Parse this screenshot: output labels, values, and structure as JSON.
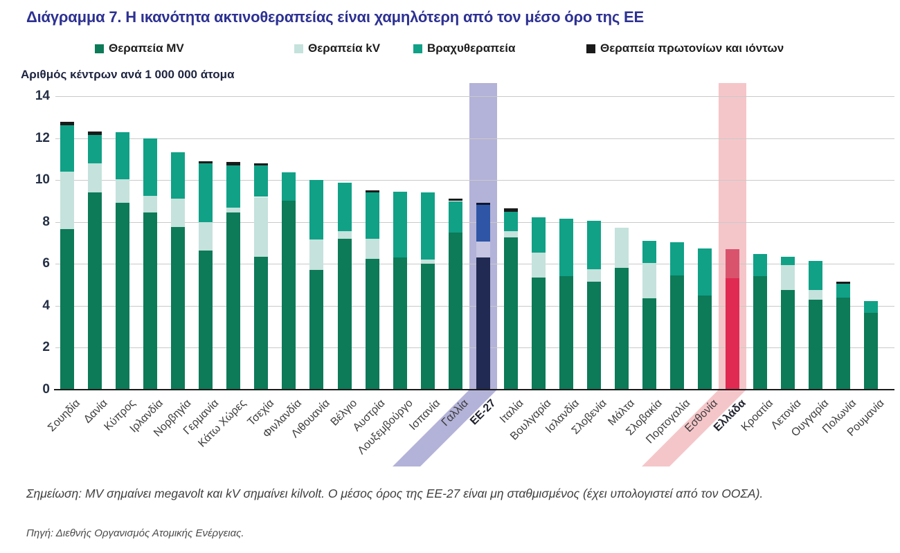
{
  "page": {
    "title": "Διάγραμμα 7. Η ικανότητα ακτινοθεραπείας είναι χαμηλότερη από τον μέσο όρο της ΕΕ"
  },
  "legend": {
    "items": [
      {
        "key": "mv",
        "label": "Θεραπεία MV"
      },
      {
        "key": "kv",
        "label": "Θεραπεία kV"
      },
      {
        "key": "brachy",
        "label": "Βραχυθεραπεία"
      },
      {
        "key": "proton",
        "label": "Θεραπεία πρωτονίων και ιόντων"
      }
    ]
  },
  "chart_data": {
    "type": "bar",
    "stacked": true,
    "title": "Διάγραμμα 7. Η ικανότητα ακτινοθεραπείας είναι χαμηλότερη από τον μέσο όρο της ΕΕ",
    "ylabel": "Αριθμός κέντρων ανά 1 000 000 άτομα",
    "xlabel": "",
    "ylim": [
      0,
      14
    ],
    "yticks": [
      0,
      2,
      4,
      6,
      8,
      10,
      12,
      14
    ],
    "grid": "horizontal",
    "legend_position": "top",
    "categories": [
      "Σουηδία",
      "Δανία",
      "Κύπρος",
      "Ιρλανδία",
      "Νορβηγία",
      "Γερμανία",
      "Κάτω Χώρες",
      "Τσεχία",
      "Φινλανδία",
      "Λιθουανία",
      "Βέλγιο",
      "Αυστρία",
      "Λουξεμβούργο",
      "Ισπανία",
      "Γαλλία",
      "ΕΕ-27",
      "Ιταλία",
      "Βουλγαρία",
      "Ισλανδία",
      "Σλοβενία",
      "Μάλτα",
      "Σλοβακία",
      "Πορτογαλία",
      "Εσθονία",
      "Ελλάδα",
      "Κροατία",
      "Λετονία",
      "Ουγγαρία",
      "Πολωνία",
      "Ρουμανία"
    ],
    "series": [
      {
        "name": "Θεραπεία MV",
        "key": "mv",
        "values": [
          7.65,
          9.4,
          8.9,
          8.45,
          7.75,
          6.65,
          8.45,
          6.35,
          9.0,
          5.7,
          7.2,
          6.25,
          6.3,
          6.0,
          7.5,
          6.3,
          7.25,
          5.35,
          5.4,
          5.15,
          5.8,
          4.35,
          5.45,
          4.5,
          5.3,
          5.4,
          4.75,
          4.3,
          4.4,
          3.65
        ]
      },
      {
        "name": "Θεραπεία kV",
        "key": "kv",
        "values": [
          2.75,
          1.4,
          1.15,
          0.8,
          1.35,
          1.35,
          0.25,
          2.85,
          0,
          1.45,
          0.35,
          0.95,
          0,
          0.2,
          0,
          0.75,
          0.3,
          1.2,
          0,
          0.6,
          1.9,
          1.7,
          0,
          0,
          0,
          0,
          1.2,
          0.45,
          0,
          0
        ]
      },
      {
        "name": "Βραχυθεραπεία",
        "key": "brachy",
        "values": [
          2.2,
          1.35,
          2.25,
          2.75,
          2.2,
          2.8,
          2.0,
          1.5,
          1.35,
          2.85,
          2.3,
          2.2,
          3.15,
          3.2,
          1.5,
          1.75,
          0.95,
          1.7,
          2.75,
          2.3,
          0,
          1.05,
          1.6,
          2.25,
          1.4,
          1.05,
          0.4,
          1.4,
          0.65,
          0.55
        ]
      },
      {
        "name": "Θεραπεία πρωτονίων και ιόντων",
        "key": "proton",
        "values": [
          0.15,
          0.15,
          0,
          0,
          0,
          0.1,
          0.15,
          0.1,
          0,
          0,
          0,
          0.1,
          0,
          0,
          0.1,
          0.1,
          0.15,
          0,
          0,
          0,
          0,
          0,
          0,
          0,
          0,
          0,
          0,
          0,
          0.1,
          0
        ]
      }
    ],
    "highlights": [
      {
        "category": "ΕΕ-27",
        "band_color": "#b3b2d8",
        "palette": "eu"
      },
      {
        "category": "Ελλάδα",
        "band_color": "#f5c6c9",
        "palette": "el"
      }
    ]
  },
  "notes": {
    "note": "Σημείωση: MV σημαίνει megavolt και kV σημαίνει kilvolt. Ο μέσος όρος της ΕΕ-27 είναι μη σταθμισμένος (έχει υπολογιστεί από τον ΟΟΣΑ).",
    "source": "Πηγή: Διεθνής Οργανισμός Ατομικής Ενέργειας."
  },
  "colors": {
    "title": "#2d3192",
    "gridline": "#c9c9c9",
    "axis": "#1a1a1a",
    "tick_text": "#253046",
    "palettes": {
      "default": {
        "mv": "#0d7a58",
        "kv": "#c5e2dc",
        "brachy": "#10a187",
        "proton": "#1a1a1a"
      },
      "eu": {
        "mv": "#202a52",
        "kv": "#c6c5e2",
        "brachy": "#2f56a6",
        "proton": "#10172e"
      },
      "el": {
        "mv": "#e02a52",
        "kv": "#e8909f",
        "brachy": "#d9536d",
        "proton": "#3a0d18"
      }
    }
  }
}
